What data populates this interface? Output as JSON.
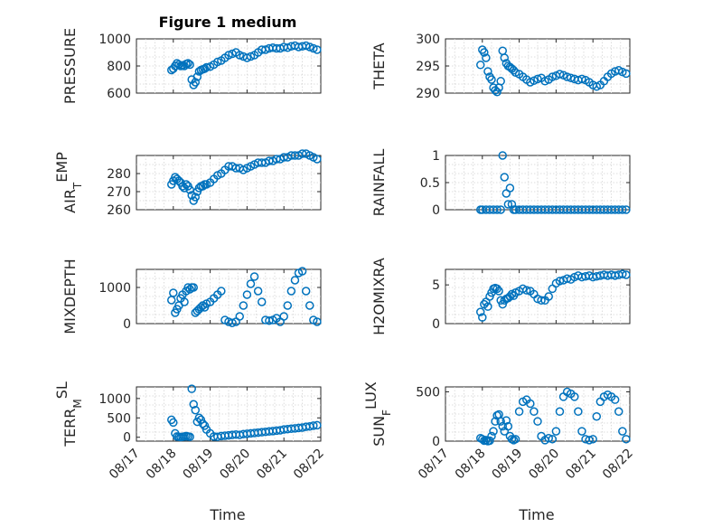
{
  "title": "Figure 1 medium",
  "xlabel": "Time",
  "colors": {
    "marker": "#0072BD",
    "axis": "#262626",
    "grid": "#d4d4d4"
  },
  "chart_data": [
    {
      "type": "scatter",
      "ylabel": "PRESSURE",
      "ylim": [
        600,
        1000
      ],
      "yticks": [
        600,
        800,
        1000
      ],
      "x": [
        0.95,
        1.0,
        1.05,
        1.1,
        1.15,
        1.2,
        1.25,
        1.3,
        1.35,
        1.4,
        1.45,
        1.5,
        1.55,
        1.6,
        1.65,
        1.7,
        1.75,
        1.8,
        1.85,
        1.9,
        2.0,
        2.1,
        2.2,
        2.3,
        2.4,
        2.5,
        2.6,
        2.7,
        2.8,
        2.9,
        3.0,
        3.1,
        3.2,
        3.3,
        3.4,
        3.5,
        3.6,
        3.7,
        3.8,
        3.9,
        4.0,
        4.1,
        4.2,
        4.3,
        4.4,
        4.5,
        4.6,
        4.7,
        4.8,
        4.9
      ],
      "y": [
        770,
        780,
        800,
        820,
        810,
        800,
        805,
        800,
        815,
        820,
        810,
        700,
        660,
        680,
        720,
        760,
        770,
        775,
        780,
        790,
        795,
        810,
        830,
        840,
        860,
        880,
        890,
        900,
        880,
        870,
        860,
        870,
        880,
        900,
        920,
        920,
        930,
        935,
        930,
        930,
        940,
        935,
        945,
        950,
        940,
        945,
        950,
        940,
        930,
        920
      ]
    },
    {
      "type": "scatter",
      "ylabel": "THETA",
      "ylim": [
        290,
        300
      ],
      "yticks": [
        290,
        295,
        300
      ],
      "x": [
        0.95,
        1.0,
        1.05,
        1.1,
        1.15,
        1.2,
        1.25,
        1.3,
        1.35,
        1.4,
        1.45,
        1.5,
        1.55,
        1.6,
        1.65,
        1.7,
        1.75,
        1.8,
        1.85,
        1.9,
        2.0,
        2.1,
        2.2,
        2.3,
        2.4,
        2.5,
        2.6,
        2.7,
        2.8,
        2.9,
        3.0,
        3.1,
        3.2,
        3.3,
        3.4,
        3.5,
        3.6,
        3.7,
        3.8,
        3.9,
        4.0,
        4.1,
        4.2,
        4.3,
        4.4,
        4.5,
        4.6,
        4.7,
        4.8,
        4.9
      ],
      "y": [
        295.2,
        298,
        297.5,
        296.5,
        294,
        293,
        292.5,
        291,
        290.5,
        290.2,
        291,
        292.2,
        297.8,
        296.5,
        295.5,
        295,
        294.8,
        294.5,
        294.2,
        293.8,
        293.5,
        293,
        292.5,
        292,
        292.3,
        292.6,
        292.8,
        292.2,
        292.5,
        293,
        293.2,
        293.5,
        293.3,
        293,
        292.8,
        292.6,
        292.4,
        292.6,
        292.4,
        292,
        291.5,
        291.2,
        291.5,
        292.2,
        293,
        293.6,
        294,
        294.2,
        293.9,
        293.6
      ]
    },
    {
      "type": "scatter",
      "ylabel": "AIR_TEMP",
      "ylim": [
        260,
        290
      ],
      "yticks": [
        260,
        270,
        280
      ],
      "x": [
        0.95,
        1.0,
        1.05,
        1.1,
        1.15,
        1.2,
        1.25,
        1.3,
        1.35,
        1.4,
        1.45,
        1.5,
        1.55,
        1.6,
        1.65,
        1.7,
        1.75,
        1.8,
        1.85,
        1.9,
        2.0,
        2.1,
        2.2,
        2.3,
        2.4,
        2.5,
        2.6,
        2.7,
        2.8,
        2.9,
        3.0,
        3.1,
        3.2,
        3.3,
        3.4,
        3.5,
        3.6,
        3.7,
        3.8,
        3.9,
        4.0,
        4.1,
        4.2,
        4.3,
        4.4,
        4.5,
        4.6,
        4.7,
        4.8,
        4.9
      ],
      "y": [
        274,
        276,
        278,
        277,
        276,
        275,
        273,
        272,
        274,
        273,
        271,
        268,
        265,
        267,
        270,
        272,
        273,
        273,
        274,
        274,
        275,
        277,
        279,
        280,
        282,
        284,
        284,
        283,
        283,
        282,
        283,
        284,
        285,
        286,
        286,
        286,
        287,
        287,
        288,
        288,
        289,
        289,
        290,
        290,
        290,
        291,
        291,
        290,
        289,
        288
      ]
    },
    {
      "type": "scatter",
      "ylabel": "RAINFALL",
      "ylim": [
        0,
        1
      ],
      "yticks": [
        0,
        0.5,
        1
      ],
      "x": [
        0.95,
        1.0,
        1.1,
        1.2,
        1.3,
        1.4,
        1.5,
        1.55,
        1.6,
        1.65,
        1.7,
        1.75,
        1.8,
        1.85,
        1.9,
        2.0,
        2.1,
        2.2,
        2.3,
        2.4,
        2.5,
        2.6,
        2.7,
        2.8,
        2.9,
        3.0,
        3.1,
        3.2,
        3.3,
        3.4,
        3.5,
        3.6,
        3.7,
        3.8,
        3.9,
        4.0,
        4.1,
        4.2,
        4.3,
        4.4,
        4.5,
        4.6,
        4.7,
        4.8,
        4.9
      ],
      "y": [
        0,
        0,
        0,
        0,
        0,
        0,
        0,
        1.0,
        0.6,
        0.3,
        0.1,
        0.4,
        0.1,
        0,
        0,
        0,
        0,
        0,
        0,
        0,
        0,
        0,
        0,
        0,
        0,
        0,
        0,
        0,
        0,
        0,
        0,
        0,
        0,
        0,
        0,
        0,
        0,
        0,
        0,
        0,
        0,
        0,
        0,
        0,
        0
      ]
    },
    {
      "type": "scatter",
      "ylabel": "MIXDEPTH",
      "ylim": [
        0,
        1500
      ],
      "yticks": [
        0,
        1000
      ],
      "x": [
        0.95,
        1.0,
        1.05,
        1.1,
        1.15,
        1.2,
        1.25,
        1.3,
        1.35,
        1.4,
        1.45,
        1.5,
        1.55,
        1.6,
        1.65,
        1.7,
        1.75,
        1.8,
        1.85,
        1.9,
        2.0,
        2.1,
        2.2,
        2.3,
        2.4,
        2.5,
        2.6,
        2.7,
        2.8,
        2.9,
        3.0,
        3.1,
        3.2,
        3.3,
        3.4,
        3.5,
        3.6,
        3.7,
        3.8,
        3.9,
        4.0,
        4.1,
        4.2,
        4.3,
        4.4,
        4.5,
        4.6,
        4.7,
        4.8,
        4.9
      ],
      "y": [
        650,
        850,
        300,
        400,
        500,
        700,
        800,
        600,
        900,
        1000,
        950,
        1000,
        1000,
        300,
        350,
        400,
        450,
        500,
        450,
        550,
        600,
        700,
        800,
        900,
        100,
        50,
        20,
        50,
        200,
        500,
        800,
        1100,
        1300,
        900,
        600,
        100,
        80,
        100,
        150,
        50,
        200,
        500,
        900,
        1200,
        1400,
        1450,
        900,
        500,
        100,
        50
      ]
    },
    {
      "type": "scatter",
      "ylabel": "H2OMIXRA",
      "ylim": [
        0,
        7
      ],
      "yticks": [
        0,
        5
      ],
      "x": [
        0.95,
        1.0,
        1.05,
        1.1,
        1.15,
        1.2,
        1.25,
        1.3,
        1.35,
        1.4,
        1.45,
        1.5,
        1.55,
        1.6,
        1.65,
        1.7,
        1.75,
        1.8,
        1.85,
        1.9,
        2.0,
        2.1,
        2.2,
        2.3,
        2.4,
        2.5,
        2.6,
        2.7,
        2.8,
        2.9,
        3.0,
        3.1,
        3.2,
        3.3,
        3.4,
        3.5,
        3.6,
        3.7,
        3.8,
        3.9,
        4.0,
        4.1,
        4.2,
        4.3,
        4.4,
        4.5,
        4.6,
        4.7,
        4.8,
        4.9
      ],
      "y": [
        1.5,
        0.8,
        2.5,
        2.8,
        2.2,
        3.5,
        4.0,
        4.5,
        4.6,
        4.5,
        4.2,
        3.0,
        2.5,
        3.0,
        3.2,
        3.3,
        3.5,
        3.8,
        3.6,
        4.0,
        4.2,
        4.5,
        4.3,
        4.2,
        3.8,
        3.2,
        3.0,
        3.0,
        3.5,
        4.5,
        5.2,
        5.5,
        5.6,
        5.8,
        5.7,
        6.0,
        6.2,
        6.0,
        6.1,
        6.2,
        6.0,
        6.1,
        6.2,
        6.3,
        6.2,
        6.3,
        6.2,
        6.3,
        6.4,
        6.3
      ]
    },
    {
      "type": "scatter",
      "ylabel": "TERR_MSL",
      "ylim": [
        -100,
        1300
      ],
      "yticks": [
        0,
        500,
        1000
      ],
      "x": [
        0.95,
        1.0,
        1.05,
        1.1,
        1.15,
        1.2,
        1.25,
        1.3,
        1.35,
        1.4,
        1.45,
        1.5,
        1.55,
        1.6,
        1.65,
        1.7,
        1.75,
        1.8,
        1.85,
        1.9,
        2.0,
        2.1,
        2.2,
        2.3,
        2.4,
        2.5,
        2.6,
        2.7,
        2.8,
        2.9,
        3.0,
        3.1,
        3.2,
        3.3,
        3.4,
        3.5,
        3.6,
        3.7,
        3.8,
        3.9,
        4.0,
        4.1,
        4.2,
        4.3,
        4.4,
        4.5,
        4.6,
        4.7,
        4.8,
        4.9
      ],
      "y": [
        450,
        380,
        100,
        20,
        10,
        5,
        10,
        20,
        30,
        20,
        10,
        1250,
        850,
        700,
        400,
        500,
        450,
        350,
        300,
        200,
        100,
        20,
        10,
        30,
        40,
        50,
        60,
        70,
        60,
        80,
        90,
        100,
        110,
        120,
        130,
        140,
        150,
        160,
        170,
        180,
        200,
        210,
        220,
        230,
        240,
        250,
        270,
        280,
        300,
        310
      ]
    },
    {
      "type": "scatter",
      "ylabel": "SUN_FLUX",
      "ylim": [
        0,
        550
      ],
      "yticks": [
        0,
        500
      ],
      "x": [
        0.95,
        1.0,
        1.05,
        1.1,
        1.15,
        1.2,
        1.25,
        1.3,
        1.35,
        1.4,
        1.45,
        1.5,
        1.55,
        1.6,
        1.65,
        1.7,
        1.75,
        1.8,
        1.85,
        1.9,
        2.0,
        2.1,
        2.2,
        2.3,
        2.4,
        2.5,
        2.6,
        2.7,
        2.8,
        2.9,
        3.0,
        3.1,
        3.2,
        3.3,
        3.4,
        3.5,
        3.6,
        3.7,
        3.8,
        3.9,
        4.0,
        4.1,
        4.2,
        4.3,
        4.4,
        4.5,
        4.6,
        4.7,
        4.8,
        4.9
      ],
      "y": [
        30,
        20,
        5,
        10,
        0,
        5,
        50,
        100,
        200,
        260,
        270,
        200,
        150,
        100,
        210,
        150,
        50,
        20,
        10,
        20,
        300,
        400,
        420,
        380,
        300,
        200,
        50,
        10,
        30,
        20,
        100,
        300,
        450,
        500,
        480,
        450,
        300,
        100,
        20,
        10,
        20,
        250,
        400,
        450,
        470,
        450,
        420,
        300,
        100,
        20
      ]
    }
  ]
}
